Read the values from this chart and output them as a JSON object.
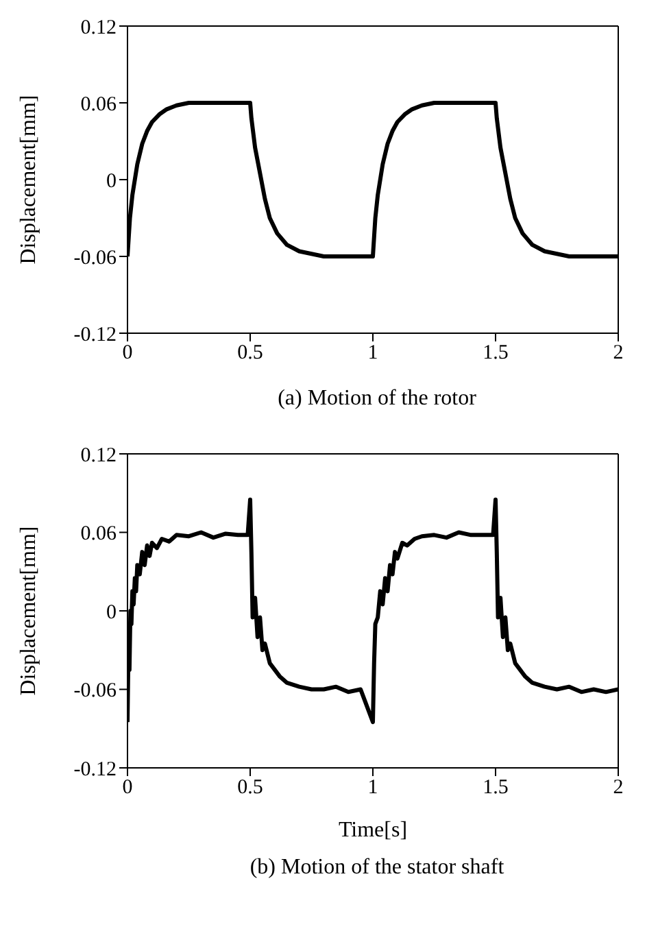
{
  "chart_data": [
    {
      "type": "line",
      "ylabel": "Displacement[mm]",
      "annotations": [
        "(a) Motion of the rotor"
      ],
      "xlim": [
        0,
        2
      ],
      "xticks": [
        0,
        0.5,
        1,
        1.5,
        2
      ],
      "ylim": [
        -0.12,
        0.12
      ],
      "yticks": [
        -0.12,
        -0.06,
        0,
        0.06,
        0.12
      ],
      "grid": false,
      "legend": false,
      "marker": "none",
      "line_style": "solid",
      "x": [
        0,
        0.005,
        0.01,
        0.02,
        0.03,
        0.04,
        0.06,
        0.08,
        0.1,
        0.13,
        0.16,
        0.2,
        0.25,
        0.3,
        0.5,
        0.505,
        0.52,
        0.54,
        0.56,
        0.58,
        0.61,
        0.65,
        0.7,
        0.75,
        0.8,
        0.9,
        1.0,
        1.005,
        1.01,
        1.02,
        1.03,
        1.04,
        1.06,
        1.08,
        1.1,
        1.13,
        1.16,
        1.2,
        1.25,
        1.3,
        1.5,
        1.505,
        1.52,
        1.54,
        1.56,
        1.58,
        1.61,
        1.65,
        1.7,
        1.75,
        1.8,
        1.9,
        2.0
      ],
      "series": [
        {
          "color": "#000000",
          "values": [
            -0.06,
            -0.045,
            -0.03,
            -0.012,
            0.0,
            0.012,
            0.028,
            0.038,
            0.045,
            0.051,
            0.055,
            0.058,
            0.06,
            0.06,
            0.06,
            0.048,
            0.025,
            0.005,
            -0.015,
            -0.03,
            -0.042,
            -0.051,
            -0.056,
            -0.058,
            -0.06,
            -0.06,
            -0.06,
            -0.045,
            -0.03,
            -0.012,
            0.0,
            0.012,
            0.028,
            0.038,
            0.045,
            0.051,
            0.055,
            0.058,
            0.06,
            0.06,
            0.06,
            0.048,
            0.025,
            0.005,
            -0.015,
            -0.03,
            -0.042,
            -0.051,
            -0.056,
            -0.058,
            -0.06,
            -0.06,
            -0.06
          ]
        }
      ]
    },
    {
      "type": "line",
      "xlabel": "Time[s]",
      "ylabel": "Displacement[mm]",
      "annotations": [
        "(b) Motion of the stator shaft"
      ],
      "xlim": [
        0,
        2
      ],
      "xticks": [
        0,
        0.5,
        1,
        1.5,
        2
      ],
      "ylim": [
        -0.12,
        0.12
      ],
      "yticks": [
        -0.12,
        -0.06,
        0,
        0.06,
        0.12
      ],
      "grid": false,
      "legend": false,
      "marker": "none",
      "line_style": "solid",
      "x": [
        0,
        0.004,
        0.008,
        0.012,
        0.016,
        0.02,
        0.025,
        0.03,
        0.035,
        0.04,
        0.05,
        0.06,
        0.07,
        0.08,
        0.09,
        0.1,
        0.12,
        0.14,
        0.17,
        0.2,
        0.25,
        0.3,
        0.35,
        0.4,
        0.45,
        0.49,
        0.5,
        0.505,
        0.51,
        0.52,
        0.53,
        0.54,
        0.55,
        0.56,
        0.58,
        0.6,
        0.62,
        0.65,
        0.7,
        0.75,
        0.8,
        0.85,
        0.9,
        0.95,
        1.0,
        1.005,
        1.01,
        1.02,
        1.03,
        1.04,
        1.05,
        1.06,
        1.07,
        1.08,
        1.09,
        1.1,
        1.12,
        1.14,
        1.17,
        1.2,
        1.25,
        1.3,
        1.35,
        1.4,
        1.45,
        1.49,
        1.5,
        1.505,
        1.51,
        1.52,
        1.53,
        1.54,
        1.55,
        1.56,
        1.58,
        1.6,
        1.62,
        1.65,
        1.7,
        1.75,
        1.8,
        1.85,
        1.9,
        1.95,
        2.0
      ],
      "series": [
        {
          "color": "#000000",
          "values": [
            -0.085,
            -0.03,
            -0.045,
            0.0,
            -0.01,
            0.015,
            0.005,
            0.025,
            0.015,
            0.035,
            0.028,
            0.045,
            0.035,
            0.05,
            0.042,
            0.052,
            0.048,
            0.055,
            0.053,
            0.058,
            0.057,
            0.06,
            0.056,
            0.059,
            0.058,
            0.058,
            0.085,
            0.045,
            -0.005,
            0.01,
            -0.02,
            -0.005,
            -0.03,
            -0.025,
            -0.04,
            -0.045,
            -0.05,
            -0.055,
            -0.058,
            -0.06,
            -0.06,
            -0.058,
            -0.062,
            -0.06,
            -0.085,
            -0.04,
            -0.01,
            -0.005,
            0.015,
            0.005,
            0.025,
            0.015,
            0.035,
            0.028,
            0.045,
            0.04,
            0.052,
            0.05,
            0.055,
            0.057,
            0.058,
            0.056,
            0.06,
            0.058,
            0.058,
            0.058,
            0.085,
            0.045,
            -0.005,
            0.01,
            -0.02,
            -0.005,
            -0.03,
            -0.025,
            -0.04,
            -0.045,
            -0.05,
            -0.055,
            -0.058,
            -0.06,
            -0.058,
            -0.062,
            -0.06,
            -0.062,
            -0.06
          ]
        }
      ]
    }
  ]
}
